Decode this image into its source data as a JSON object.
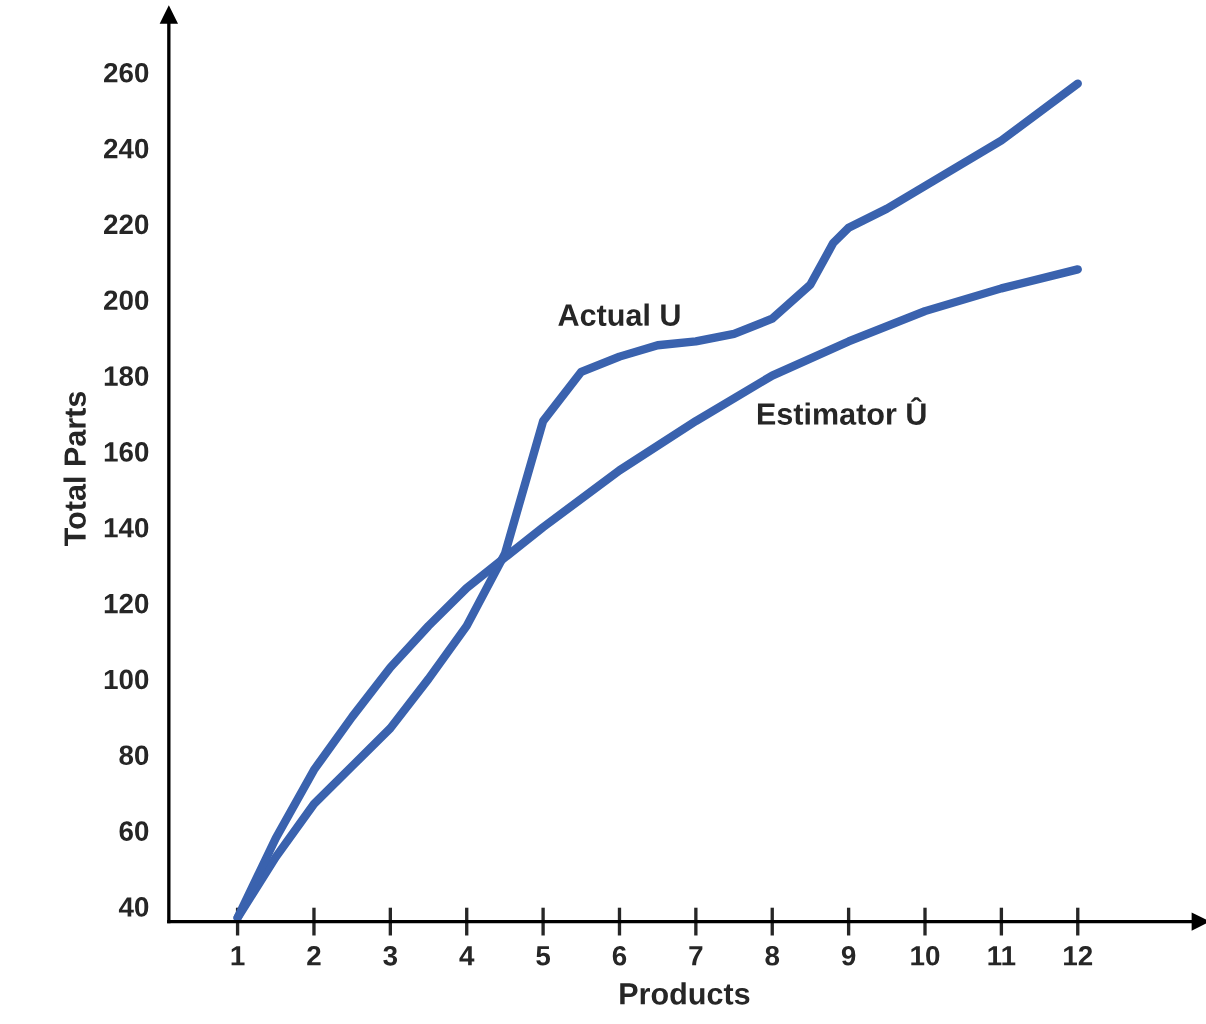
{
  "chart_data": {
    "type": "line",
    "xlabel": "Products",
    "ylabel": "Total Parts",
    "xlim": [
      0.1,
      13.6
    ],
    "ylim": [
      36,
      275
    ],
    "xticks": [
      1,
      2,
      3,
      4,
      5,
      6,
      7,
      8,
      9,
      10,
      11,
      12
    ],
    "yticks": [
      40,
      60,
      80,
      100,
      120,
      140,
      160,
      180,
      200,
      220,
      240,
      260
    ],
    "grid": false,
    "legend": false,
    "marker": "none",
    "line_style": "solid",
    "series": [
      {
        "name": "Actual U",
        "color": "#3a62ae",
        "x": [
          1,
          1.5,
          2,
          2.5,
          3,
          3.5,
          4,
          4.5,
          5,
          5.5,
          6,
          6.5,
          7,
          7.5,
          8,
          8.5,
          8.8,
          9,
          9.5,
          10,
          11,
          12
        ],
        "values": [
          37,
          53,
          67,
          77,
          87,
          100,
          114,
          133,
          168,
          181,
          185,
          188,
          189,
          191,
          195,
          204,
          215,
          219,
          224,
          230,
          242,
          257
        ]
      },
      {
        "name": "Estimator Û",
        "color": "#3a62ae",
        "x": [
          1,
          1.5,
          2,
          2.5,
          3,
          3.5,
          4,
          4.5,
          5,
          6,
          7,
          8,
          9,
          10,
          11,
          12
        ],
        "values": [
          37,
          58,
          76,
          90,
          103,
          114,
          124,
          132,
          140,
          155,
          168,
          180,
          189,
          197,
          203,
          208
        ]
      }
    ]
  }
}
